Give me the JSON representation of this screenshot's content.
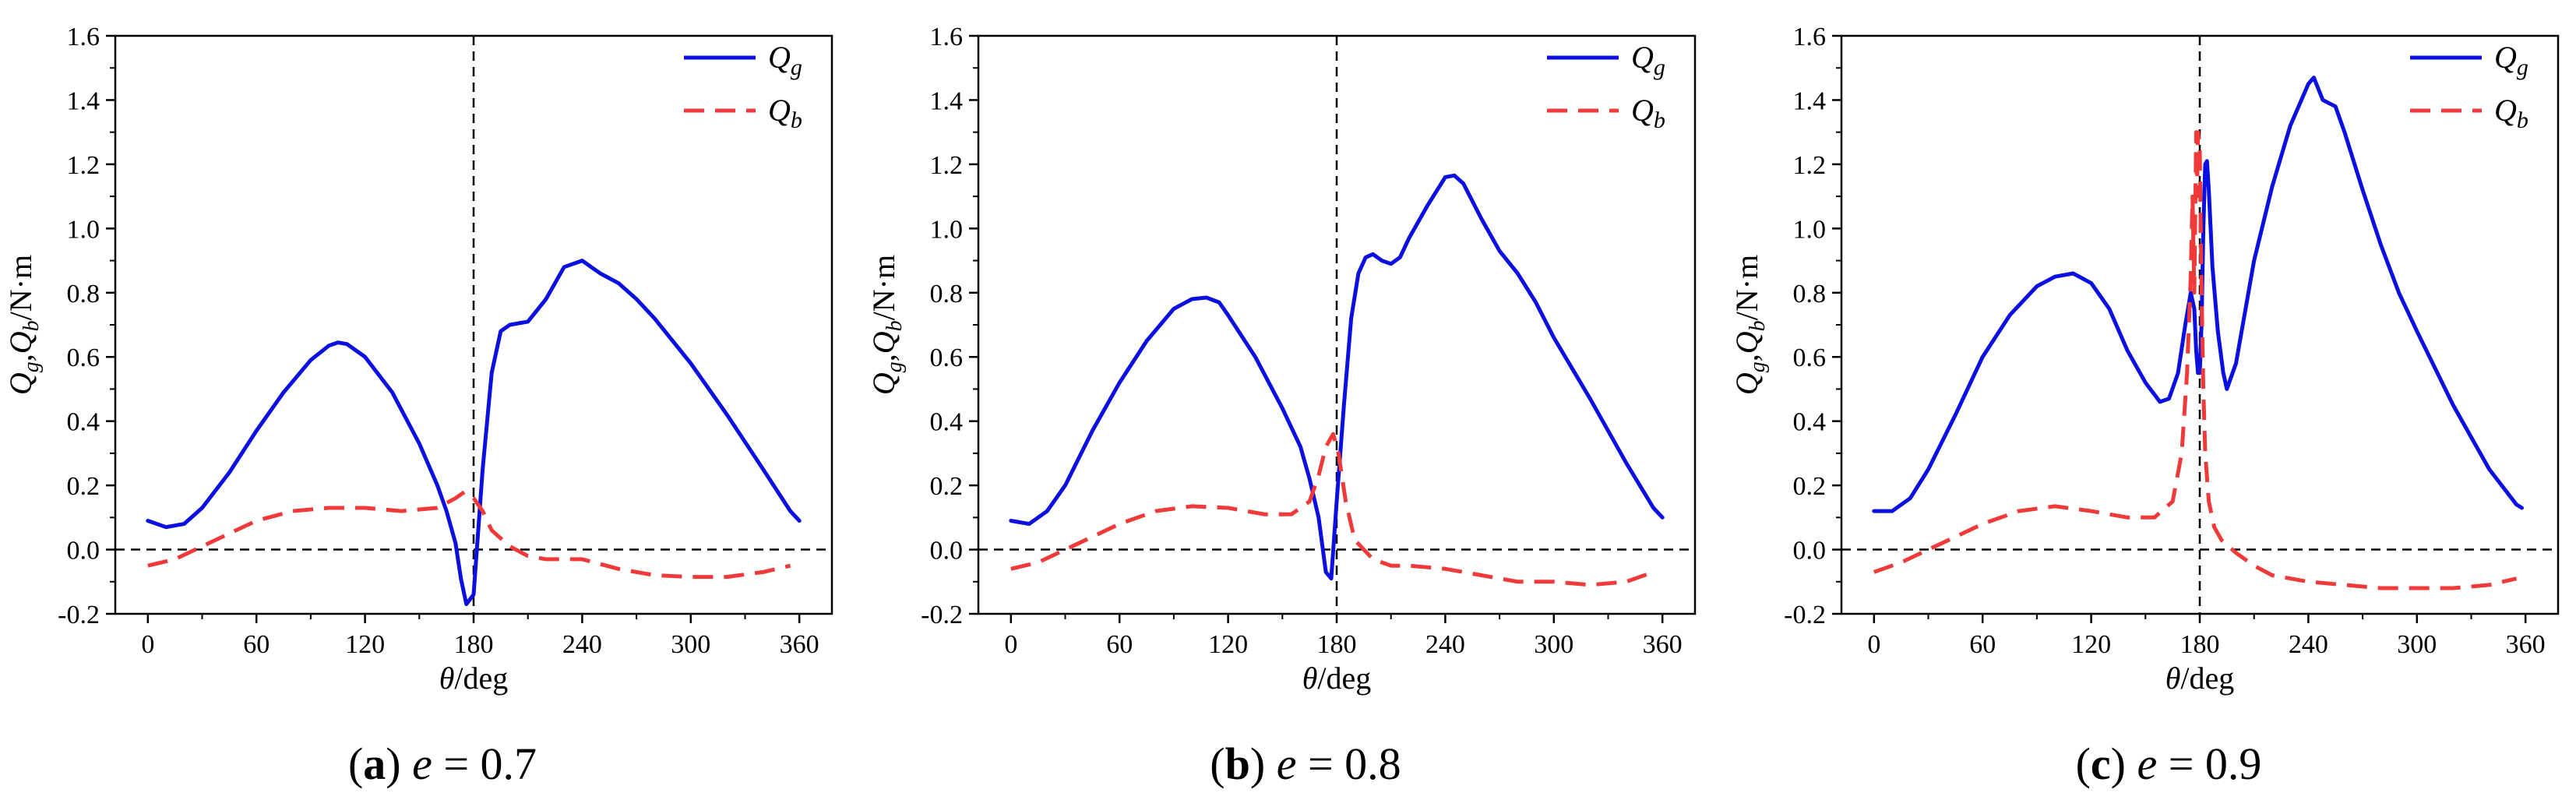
{
  "figure": {
    "colors": {
      "qg": "#0b10e0",
      "qb": "#f03a3a",
      "axis": "#000000"
    }
  },
  "chart_data": [
    {
      "type": "line",
      "id": "a",
      "caption": {
        "letter": "(a)",
        "text": "e = 0.7"
      },
      "xlabel": "θ/deg",
      "ylabel": "Qg,Qb/N·m",
      "xlim": [
        -18,
        378
      ],
      "ylim": [
        -0.2,
        1.6
      ],
      "xticks": [
        0,
        60,
        120,
        180,
        240,
        300,
        360
      ],
      "yticks": [
        "-0.2",
        "0.0",
        "0.2",
        "0.4",
        "0.6",
        "0.8",
        "1.0",
        "1.2",
        "1.4",
        "1.6"
      ],
      "vline_x": 180,
      "hline_y": 0,
      "legend": [
        "Qg",
        "Qb"
      ],
      "series": [
        {
          "name": "Qg",
          "style": "solid",
          "color": "#0b10e0",
          "x": [
            0,
            10,
            20,
            30,
            45,
            60,
            75,
            90,
            100,
            105,
            110,
            120,
            135,
            150,
            160,
            165,
            170,
            173,
            176,
            180,
            185,
            190,
            195,
            200,
            210,
            220,
            230,
            240,
            250,
            260,
            270,
            280,
            300,
            320,
            340,
            355,
            360
          ],
          "y": [
            0.09,
            0.07,
            0.08,
            0.13,
            0.24,
            0.37,
            0.49,
            0.59,
            0.635,
            0.645,
            0.64,
            0.6,
            0.49,
            0.33,
            0.2,
            0.12,
            0.02,
            -0.09,
            -0.17,
            -0.14,
            0.25,
            0.55,
            0.68,
            0.7,
            0.71,
            0.78,
            0.88,
            0.9,
            0.86,
            0.83,
            0.78,
            0.72,
            0.58,
            0.42,
            0.25,
            0.12,
            0.09
          ]
        },
        {
          "name": "Qb",
          "style": "dashed",
          "color": "#f03a3a",
          "x": [
            0,
            15,
            30,
            45,
            60,
            80,
            100,
            120,
            140,
            160,
            170,
            175,
            180,
            185,
            190,
            200,
            210,
            220,
            240,
            260,
            280,
            300,
            320,
            340,
            355
          ],
          "y": [
            -0.05,
            -0.03,
            0.01,
            0.05,
            0.09,
            0.12,
            0.13,
            0.13,
            0.12,
            0.13,
            0.16,
            0.18,
            0.16,
            0.12,
            0.06,
            0.01,
            -0.02,
            -0.03,
            -0.03,
            -0.06,
            -0.08,
            -0.085,
            -0.085,
            -0.07,
            -0.05
          ]
        }
      ]
    },
    {
      "type": "line",
      "id": "b",
      "caption": {
        "letter": "(b)",
        "text": "e = 0.8"
      },
      "xlabel": "θ/deg",
      "ylabel": "Qg,Qb/N·m",
      "xlim": [
        -18,
        378
      ],
      "ylim": [
        -0.2,
        1.6
      ],
      "xticks": [
        0,
        60,
        120,
        180,
        240,
        300,
        360
      ],
      "yticks": [
        "-0.2",
        "0.0",
        "0.2",
        "0.4",
        "0.6",
        "0.8",
        "1.0",
        "1.2",
        "1.4",
        "1.6"
      ],
      "vline_x": 180,
      "hline_y": 0,
      "legend": [
        "Qg",
        "Qb"
      ],
      "series": [
        {
          "name": "Qg",
          "style": "solid",
          "color": "#0b10e0",
          "x": [
            0,
            10,
            20,
            30,
            45,
            60,
            75,
            90,
            100,
            108,
            115,
            120,
            135,
            150,
            160,
            165,
            170,
            174,
            177,
            180,
            184,
            188,
            192,
            196,
            200,
            205,
            210,
            215,
            220,
            230,
            240,
            245,
            250,
            260,
            270,
            280,
            290,
            300,
            320,
            340,
            355,
            360
          ],
          "y": [
            0.09,
            0.08,
            0.12,
            0.2,
            0.37,
            0.52,
            0.65,
            0.75,
            0.78,
            0.785,
            0.77,
            0.73,
            0.6,
            0.44,
            0.32,
            0.22,
            0.1,
            -0.07,
            -0.09,
            0.15,
            0.45,
            0.72,
            0.86,
            0.91,
            0.92,
            0.9,
            0.89,
            0.91,
            0.97,
            1.07,
            1.16,
            1.165,
            1.14,
            1.03,
            0.93,
            0.86,
            0.77,
            0.66,
            0.47,
            0.27,
            0.13,
            0.1
          ]
        },
        {
          "name": "Qb",
          "style": "dashed",
          "color": "#f03a3a",
          "x": [
            0,
            15,
            30,
            45,
            60,
            80,
            100,
            120,
            140,
            155,
            165,
            170,
            174,
            178,
            181,
            185,
            190,
            200,
            210,
            220,
            240,
            260,
            280,
            300,
            320,
            340,
            355
          ],
          "y": [
            -0.06,
            -0.04,
            0.0,
            0.04,
            0.08,
            0.12,
            0.135,
            0.13,
            0.11,
            0.11,
            0.15,
            0.23,
            0.32,
            0.36,
            0.3,
            0.15,
            0.03,
            -0.03,
            -0.05,
            -0.05,
            -0.06,
            -0.08,
            -0.1,
            -0.1,
            -0.11,
            -0.1,
            -0.07
          ]
        }
      ]
    },
    {
      "type": "line",
      "id": "c",
      "caption": {
        "letter": "(c)",
        "text": "e = 0.9"
      },
      "xlabel": "θ/deg",
      "ylabel": "Qg,Qb/N·m",
      "xlim": [
        -18,
        378
      ],
      "ylim": [
        -0.2,
        1.6
      ],
      "xticks": [
        0,
        60,
        120,
        180,
        240,
        300,
        360
      ],
      "yticks": [
        "-0.2",
        "0.0",
        "0.2",
        "0.4",
        "0.6",
        "0.8",
        "1.0",
        "1.2",
        "1.4",
        "1.6"
      ],
      "vline_x": 180,
      "hline_y": 0,
      "legend": [
        "Qg",
        "Qb"
      ],
      "series": [
        {
          "name": "Qg",
          "style": "solid",
          "color": "#0b10e0",
          "x": [
            0,
            10,
            20,
            30,
            45,
            60,
            75,
            90,
            100,
            110,
            120,
            130,
            140,
            150,
            158,
            163,
            168,
            172,
            175,
            177,
            178,
            179,
            180,
            181,
            182,
            183,
            184,
            185,
            187,
            190,
            193,
            195,
            200,
            210,
            220,
            230,
            240,
            243,
            248,
            255,
            260,
            270,
            280,
            290,
            300,
            320,
            340,
            355,
            358
          ],
          "y": [
            0.12,
            0.12,
            0.16,
            0.25,
            0.42,
            0.6,
            0.73,
            0.82,
            0.85,
            0.86,
            0.83,
            0.75,
            0.62,
            0.52,
            0.46,
            0.47,
            0.55,
            0.7,
            0.8,
            0.75,
            0.62,
            0.55,
            0.55,
            0.7,
            1.0,
            1.2,
            1.21,
            1.12,
            0.88,
            0.68,
            0.55,
            0.5,
            0.58,
            0.9,
            1.13,
            1.32,
            1.45,
            1.47,
            1.4,
            1.38,
            1.3,
            1.12,
            0.95,
            0.8,
            0.68,
            0.45,
            0.25,
            0.14,
            0.13
          ]
        },
        {
          "name": "Qb",
          "style": "dashed",
          "color": "#f03a3a",
          "x": [
            0,
            15,
            30,
            45,
            60,
            80,
            100,
            120,
            140,
            155,
            165,
            170,
            173,
            175,
            176,
            177,
            178,
            178.5,
            179,
            180,
            181,
            182,
            183,
            185,
            188,
            192,
            200,
            210,
            220,
            240,
            260,
            280,
            300,
            320,
            340,
            355
          ],
          "y": [
            -0.07,
            -0.04,
            0.0,
            0.04,
            0.08,
            0.12,
            0.135,
            0.12,
            0.1,
            0.1,
            0.15,
            0.3,
            0.55,
            0.85,
            1.1,
            0.8,
            1.3,
            1.1,
            1.3,
            1.25,
            0.8,
            0.5,
            0.3,
            0.15,
            0.07,
            0.03,
            -0.01,
            -0.05,
            -0.08,
            -0.1,
            -0.11,
            -0.12,
            -0.12,
            -0.12,
            -0.11,
            -0.09
          ]
        }
      ]
    }
  ]
}
